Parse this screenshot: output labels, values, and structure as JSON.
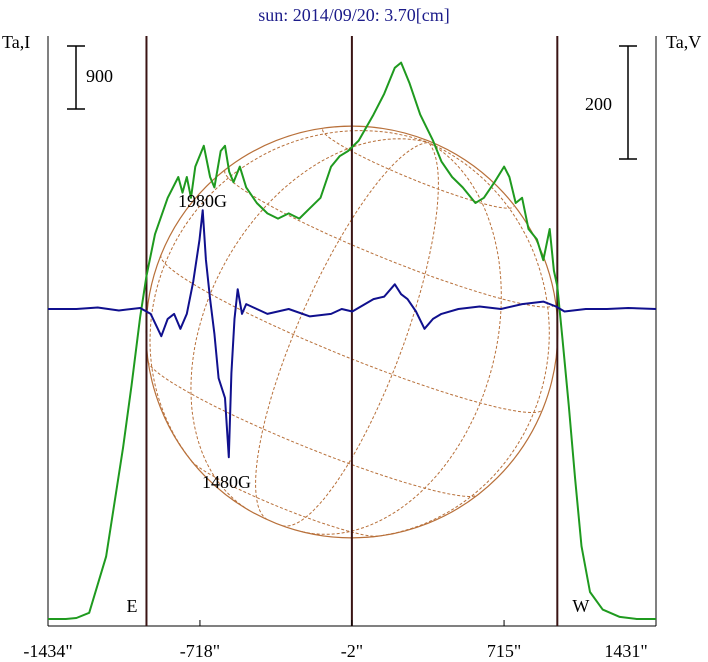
{
  "chart_data": {
    "type": "line",
    "title": "sun: 2014/09/20: 3.70[cm]",
    "left_axis_label": "Ta,I",
    "right_axis_label": "Ta,V",
    "x_tick_labels": [
      "-1434\"",
      "-718\"",
      "-2\"",
      "715\"",
      "1431\""
    ],
    "x_ticks": [
      -1434,
      -718,
      -2,
      715,
      1431
    ],
    "xlim": [
      -1434,
      1431
    ],
    "limb_marks": [
      -970,
      -2,
      966
    ],
    "limb_labels": {
      "east": "E",
      "west": "W"
    },
    "scale_bars": {
      "I": 900,
      "V": 200
    },
    "annotations": [
      {
        "text": "1980G",
        "x": -720,
        "y_series": "V"
      },
      {
        "text": "1480G",
        "x": -580,
        "y_series": "V"
      }
    ],
    "sun_disk": {
      "radius_arcsec": 970,
      "center_x": -2,
      "grid": true
    },
    "series": [
      {
        "name": "Ta,I",
        "color": "#1f9a1f",
        "points": [
          [
            -1434,
            0
          ],
          [
            -1350,
            0
          ],
          [
            -1300,
            10
          ],
          [
            -1240,
            60
          ],
          [
            -1160,
            600
          ],
          [
            -1080,
            1650
          ],
          [
            -1040,
            2250
          ],
          [
            -1000,
            2900
          ],
          [
            -970,
            3300
          ],
          [
            -930,
            3700
          ],
          [
            -870,
            4050
          ],
          [
            -820,
            4250
          ],
          [
            -800,
            4100
          ],
          [
            -780,
            4250
          ],
          [
            -760,
            4050
          ],
          [
            -740,
            4350
          ],
          [
            -700,
            4550
          ],
          [
            -670,
            4250
          ],
          [
            -650,
            4150
          ],
          [
            -620,
            4500
          ],
          [
            -600,
            4550
          ],
          [
            -580,
            4300
          ],
          [
            -560,
            4200
          ],
          [
            -530,
            4350
          ],
          [
            -500,
            4150
          ],
          [
            -450,
            4000
          ],
          [
            -400,
            3900
          ],
          [
            -350,
            3850
          ],
          [
            -300,
            3900
          ],
          [
            -250,
            3850
          ],
          [
            -200,
            3950
          ],
          [
            -150,
            4050
          ],
          [
            -100,
            4350
          ],
          [
            -60,
            4450
          ],
          [
            -20,
            4500
          ],
          [
            30,
            4600
          ],
          [
            100,
            4850
          ],
          [
            150,
            5050
          ],
          [
            200,
            5300
          ],
          [
            230,
            5350
          ],
          [
            270,
            5150
          ],
          [
            320,
            4850
          ],
          [
            380,
            4600
          ],
          [
            420,
            4400
          ],
          [
            470,
            4250
          ],
          [
            520,
            4150
          ],
          [
            580,
            4000
          ],
          [
            620,
            4050
          ],
          [
            670,
            4200
          ],
          [
            715,
            4350
          ],
          [
            740,
            4250
          ],
          [
            770,
            4000
          ],
          [
            800,
            4050
          ],
          [
            830,
            3750
          ],
          [
            870,
            3650
          ],
          [
            900,
            3450
          ],
          [
            930,
            3750
          ],
          [
            950,
            3350
          ],
          [
            966,
            3200
          ],
          [
            990,
            2700
          ],
          [
            1020,
            2050
          ],
          [
            1050,
            1350
          ],
          [
            1080,
            700
          ],
          [
            1120,
            260
          ],
          [
            1180,
            90
          ],
          [
            1260,
            20
          ],
          [
            1340,
            0
          ],
          [
            1431,
            0
          ]
        ]
      },
      {
        "name": "Ta,V",
        "color": "#10108e",
        "points": [
          [
            -1434,
            0
          ],
          [
            -1300,
            0
          ],
          [
            -1200,
            3
          ],
          [
            -1100,
            -3
          ],
          [
            -1000,
            2
          ],
          [
            -950,
            -10
          ],
          [
            -900,
            -55
          ],
          [
            -870,
            -20
          ],
          [
            -840,
            -10
          ],
          [
            -810,
            -40
          ],
          [
            -780,
            -10
          ],
          [
            -750,
            55
          ],
          [
            -720,
            140
          ],
          [
            -705,
            200
          ],
          [
            -690,
            100
          ],
          [
            -670,
            20
          ],
          [
            -650,
            -50
          ],
          [
            -630,
            -140
          ],
          [
            -600,
            -180
          ],
          [
            -582,
            -300
          ],
          [
            -570,
            -130
          ],
          [
            -555,
            -20
          ],
          [
            -540,
            40
          ],
          [
            -520,
            -10
          ],
          [
            -500,
            10
          ],
          [
            -450,
            0
          ],
          [
            -400,
            -10
          ],
          [
            -300,
            0
          ],
          [
            -200,
            -15
          ],
          [
            -100,
            -10
          ],
          [
            -50,
            0
          ],
          [
            0,
            -5
          ],
          [
            100,
            20
          ],
          [
            150,
            25
          ],
          [
            200,
            50
          ],
          [
            230,
            30
          ],
          [
            260,
            20
          ],
          [
            300,
            -5
          ],
          [
            340,
            -40
          ],
          [
            380,
            -20
          ],
          [
            420,
            -10
          ],
          [
            500,
            0
          ],
          [
            600,
            5
          ],
          [
            700,
            0
          ],
          [
            800,
            10
          ],
          [
            900,
            15
          ],
          [
            960,
            5
          ],
          [
            1000,
            -5
          ],
          [
            1100,
            0
          ],
          [
            1200,
            0
          ],
          [
            1300,
            2
          ],
          [
            1431,
            0
          ]
        ]
      }
    ]
  }
}
